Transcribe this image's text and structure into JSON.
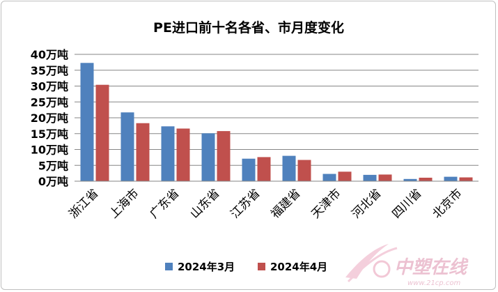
{
  "chart_data": {
    "type": "bar",
    "title": "PE进口前十名各省、市月度变化",
    "categories": [
      "浙江省",
      "上海市",
      "广东省",
      "山东省",
      "江苏省",
      "福建省",
      "天津市",
      "河北省",
      "四川省",
      "北京市"
    ],
    "series": [
      {
        "name": "2024年3月",
        "color": "#4f81bd",
        "values": [
          37.3,
          21.7,
          17.3,
          15.1,
          7.1,
          8.0,
          2.3,
          2.0,
          0.7,
          1.4
        ]
      },
      {
        "name": "2024年4月",
        "color": "#c0504d",
        "values": [
          30.4,
          18.3,
          16.6,
          15.8,
          7.6,
          6.7,
          3.0,
          2.1,
          1.1,
          1.2
        ]
      }
    ],
    "yticks": [
      "0万吨",
      "5万吨",
      "10万吨",
      "15万吨",
      "20万吨",
      "25万吨",
      "30万吨",
      "35万吨",
      "40万吨"
    ],
    "ylim": [
      0,
      40
    ],
    "grid": true,
    "legend_position": "bottom"
  },
  "watermark": {
    "text": "中塑在线",
    "url": "www.21cp.com"
  }
}
